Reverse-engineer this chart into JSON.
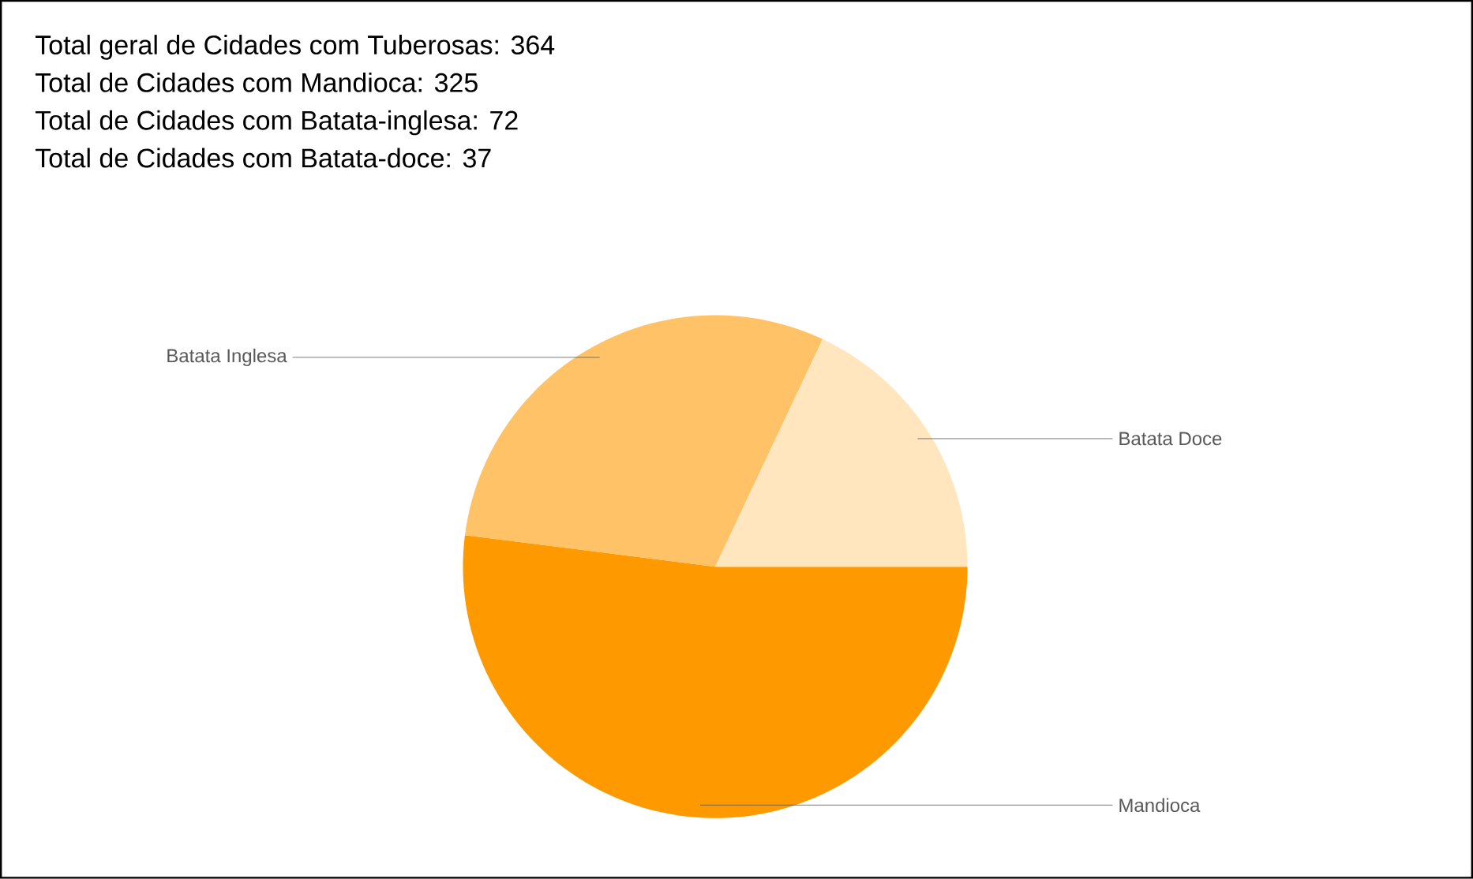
{
  "chart_data": {
    "type": "pie",
    "categories": [
      "Mandioca",
      "Batata Inglesa",
      "Batata Doce"
    ],
    "values": [
      52,
      30,
      18
    ],
    "colors": [
      "#ff9900",
      "#ffc266",
      "#ffe6bf"
    ],
    "annotations": [
      "Total geral de Cidades com Tuberosas: 364",
      "Total de Cidades com Mandioca: 325",
      "Total de Cidades com Batata-inglesa: 72",
      "Total de Cidades com Batata-doce: 37"
    ],
    "legend": false
  }
}
